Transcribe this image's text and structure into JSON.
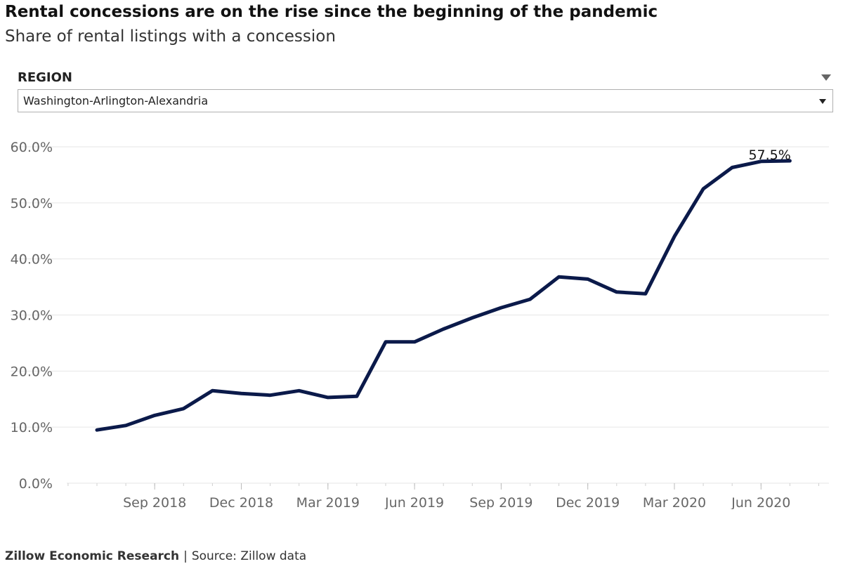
{
  "header": {
    "title": "Rental concessions are on the rise since the beginning of the pandemic",
    "subtitle": "Share of rental listings with a concession"
  },
  "filter": {
    "label": "REGION",
    "selected": "Washington-Arlington-Alexandria"
  },
  "footer": {
    "org": "Zillow Economic Research",
    "separator": "|",
    "source": "Source: Zillow data"
  },
  "colors": {
    "line": "#0b1a4a",
    "grid": "#e6e6e6",
    "tick_text": "#666666"
  },
  "chart_data": {
    "type": "line",
    "x": [
      "Jul 2018",
      "Aug 2018",
      "Sep 2018",
      "Oct 2018",
      "Nov 2018",
      "Dec 2018",
      "Jan 2019",
      "Feb 2019",
      "Mar 2019",
      "Apr 2019",
      "May 2019",
      "Jun 2019",
      "Jul 2019",
      "Aug 2019",
      "Sep 2019",
      "Oct 2019",
      "Nov 2019",
      "Dec 2019",
      "Jan 2020",
      "Feb 2020",
      "Mar 2020",
      "Apr 2020",
      "May 2020",
      "Jun 2020",
      "Jul 2020"
    ],
    "series": [
      {
        "values": [
          9.5,
          10.3,
          12.1,
          13.3,
          16.5,
          16.0,
          15.7,
          16.5,
          15.3,
          15.5,
          25.2,
          25.2,
          27.5,
          29.5,
          31.3,
          32.8,
          36.8,
          36.4,
          34.1,
          33.8,
          44.0,
          52.5,
          56.3,
          57.4,
          57.5
        ]
      }
    ],
    "x_tick_labels": [
      "Sep 2018",
      "Dec 2018",
      "Mar 2019",
      "Jun 2019",
      "Sep 2019",
      "Dec 2019",
      "Mar 2020",
      "Jun 2020"
    ],
    "y_ticks": [
      0,
      10,
      20,
      30,
      40,
      50,
      60
    ],
    "y_tick_labels": [
      "0.0%",
      "10.0%",
      "20.0%",
      "30.0%",
      "40.0%",
      "50.0%",
      "60.0%"
    ],
    "ylim": [
      0,
      60
    ],
    "annotation": "57.5%",
    "title": "",
    "xlabel": "",
    "ylabel": "",
    "grid": true
  }
}
